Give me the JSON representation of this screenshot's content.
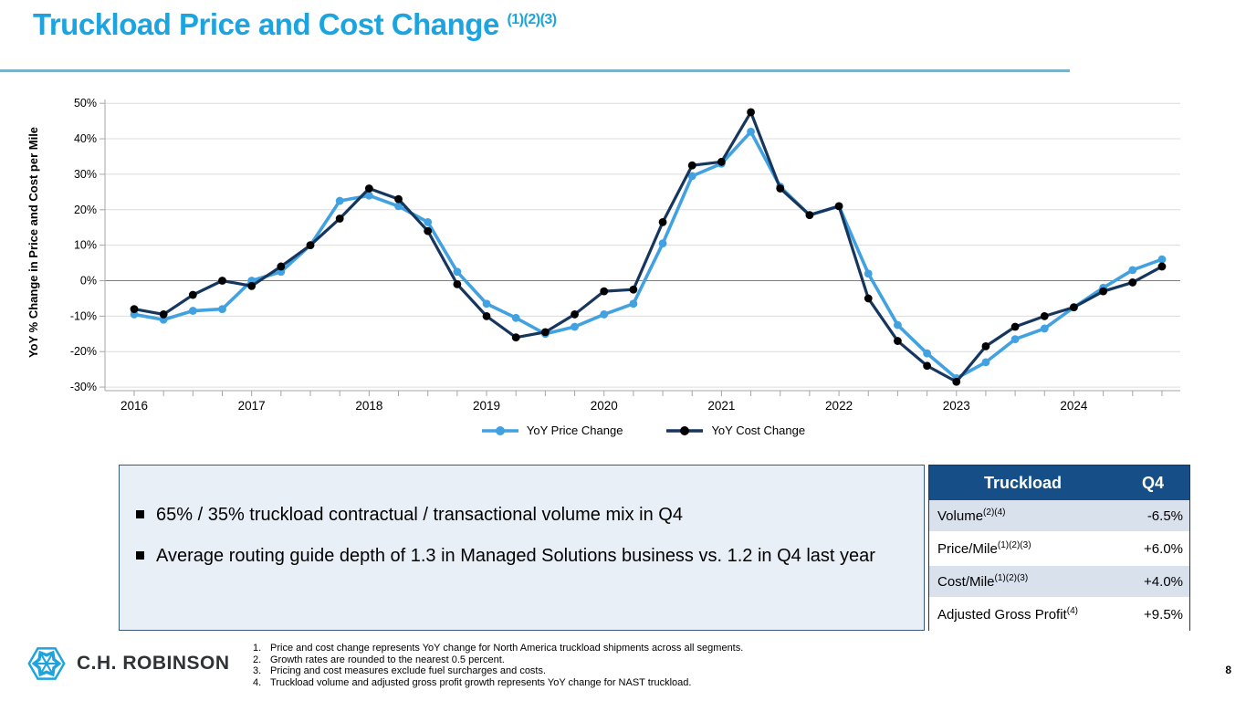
{
  "slide": {
    "title": "Truckload Price and Cost Change",
    "title_superscript": "(1)(2)(3)",
    "page_number": "8"
  },
  "chart_data": {
    "type": "line",
    "title": "",
    "xlabel": "",
    "ylabel": "YoY % Change in Price and Cost per Mile",
    "ylim": [
      -30,
      50
    ],
    "ytick_step": 10,
    "ytick_labels": [
      "50%",
      "40%",
      "30%",
      "20%",
      "10%",
      "0%",
      "-10%",
      "-20%",
      "-30%"
    ],
    "grid": true,
    "legend_position": "bottom",
    "year_tick_labels": [
      "2016",
      "2017",
      "2018",
      "2019",
      "2020",
      "2021",
      "2022",
      "2023",
      "2024"
    ],
    "x_quarters": [
      "2016Q1",
      "2016Q2",
      "2016Q3",
      "2016Q4",
      "2017Q1",
      "2017Q2",
      "2017Q3",
      "2017Q4",
      "2018Q1",
      "2018Q2",
      "2018Q3",
      "2018Q4",
      "2019Q1",
      "2019Q2",
      "2019Q3",
      "2019Q4",
      "2020Q1",
      "2020Q2",
      "2020Q3",
      "2020Q4",
      "2021Q1",
      "2021Q2",
      "2021Q3",
      "2021Q4",
      "2022Q1",
      "2022Q2",
      "2022Q3",
      "2022Q4",
      "2023Q1",
      "2023Q2",
      "2023Q3",
      "2023Q4",
      "2024Q1",
      "2024Q2",
      "2024Q3",
      "2024Q4"
    ],
    "series": [
      {
        "name": "YoY Price Change",
        "color": "#41A1E1",
        "marker_color": "#41A1E1",
        "values": [
          -9.5,
          -11,
          -8.5,
          -8,
          0,
          2.5,
          10,
          22.5,
          24,
          21,
          16.5,
          2.5,
          -6.5,
          -10.5,
          -15,
          -13,
          -9.5,
          -6.5,
          10.5,
          29.5,
          33,
          42,
          26.5,
          18.5,
          21,
          2,
          -12.5,
          -20.5,
          -27.5,
          -23,
          -16.5,
          -13.5,
          -7.5,
          -2,
          3,
          6
        ]
      },
      {
        "name": "YoY Cost Change",
        "color": "#17365D",
        "marker_color": "#000000",
        "values": [
          -8,
          -9.5,
          -4,
          0,
          -1.5,
          4,
          10,
          17.5,
          26,
          23,
          14,
          -1,
          -10,
          -16,
          -14.5,
          -9.5,
          -3,
          -2.5,
          16.5,
          32.5,
          33.5,
          47.5,
          26,
          18.5,
          21,
          -5,
          -17,
          -24,
          -28.5,
          -18.5,
          -13,
          -10,
          -7.5,
          -3,
          -0.5,
          4
        ]
      }
    ]
  },
  "highlights": {
    "bullets": [
      "65% / 35% truckload contractual / transactional volume mix in Q4",
      "Average routing guide depth of 1.3 in Managed Solutions business vs. 1.2 in Q4 last year"
    ]
  },
  "table": {
    "header": [
      "Truckload",
      "Q4"
    ],
    "rows": [
      {
        "label": "Volume",
        "superscript": "(2)(4)",
        "value": "-6.5%"
      },
      {
        "label": "Price/Mile",
        "superscript": "(1)(2)(3)",
        "value": "+6.0%"
      },
      {
        "label": "Cost/Mile",
        "superscript": "(1)(2)(3)",
        "value": "+4.0%"
      },
      {
        "label": "Adjusted Gross Profit",
        "superscript": "(4)",
        "value": "+9.5%"
      }
    ]
  },
  "footnotes": [
    "Price and cost change represents YoY change for North America truckload shipments across all segments.",
    "Growth rates are rounded to the nearest 0.5 percent.",
    "Pricing and cost measures exclude fuel surcharges and costs.",
    "Truckload volume and adjusted gross profit growth represents YoY change for NAST truckload."
  ],
  "logo": {
    "text": "C.H. ROBINSON"
  },
  "colors": {
    "title_blue": "#1BA4DF",
    "title_underline": "#79B2C8",
    "grid_line": "#DCDCDC",
    "zero_line": "#7F7F7F",
    "axis_line": "#A6A6A6",
    "highlights_bg": "#E9EFF7",
    "highlights_border": "#3A5A7C",
    "table_header_bg": "#164F87",
    "table_alt_row_bg": "#D9E1ED",
    "logo_blue": "#1FA3DC"
  }
}
